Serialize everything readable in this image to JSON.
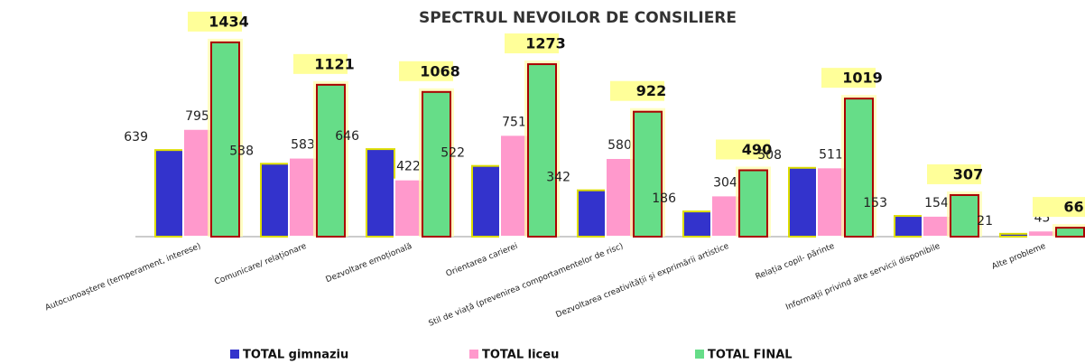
{
  "chart_data": {
    "type": "bar",
    "title": "SPECTRUL NEVOILOR DE CONSILIERE",
    "categories": [
      "Autocunoaștere (temperament, interese)",
      "Comunicare/ relaționare",
      "Dezvoltare emoțională",
      "Orientarea carierei",
      "Stil de viață (prevenirea comportamentelor de risc)",
      "Dezvoltarea creativității și exprimării artistice",
      "Relația copil- părinte",
      "Informații privind alte servicii disponibile",
      "Alte probleme"
    ],
    "series": [
      {
        "name": "TOTAL gimnaziu",
        "color": "#3333cc",
        "values": [
          639,
          538,
          646,
          522,
          342,
          186,
          508,
          153,
          21
        ]
      },
      {
        "name": "TOTAL liceu",
        "color": "#ff99cc",
        "values": [
          795,
          583,
          422,
          751,
          580,
          304,
          511,
          154,
          45
        ]
      },
      {
        "name": "TOTAL FINAL",
        "color": "#66dd88",
        "values": [
          1434,
          1121,
          1068,
          1273,
          922,
          490,
          1019,
          307,
          66
        ]
      }
    ],
    "ylim": [
      0,
      1500
    ]
  }
}
